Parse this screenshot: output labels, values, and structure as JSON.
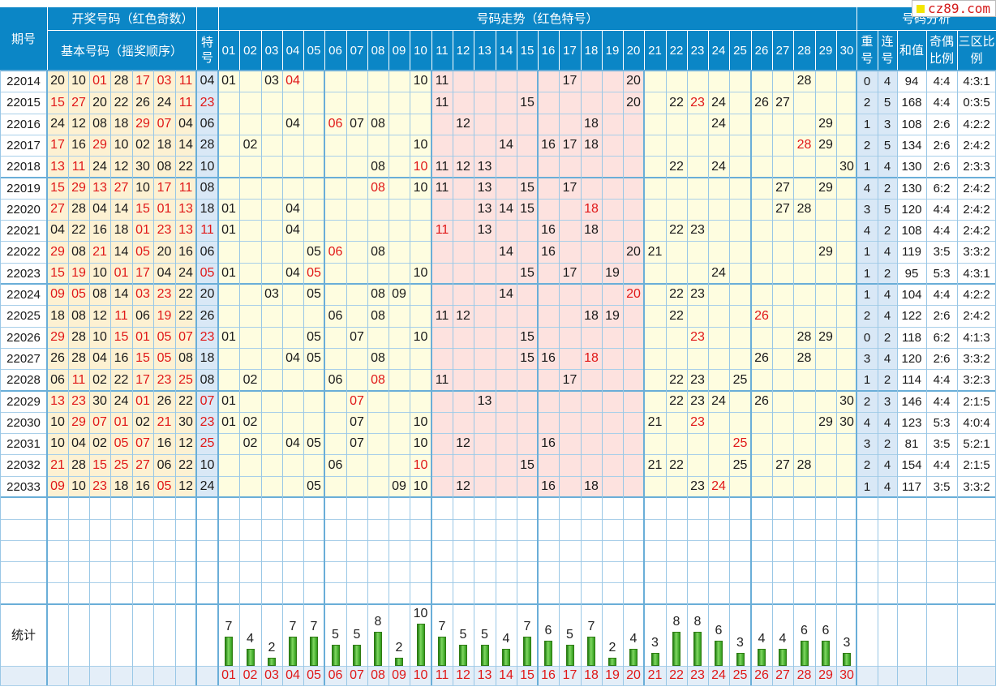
{
  "header": {
    "col_issue": "期号",
    "group_winning": "开奖号码（红色奇数）",
    "group_basic": "基本号码（摇奖顺序）",
    "group_special": "特号",
    "group_trend": "号码走势（红色特号）",
    "group_analysis": "号码分析",
    "analysis_cols": [
      "重号",
      "连号",
      "和值",
      "奇偶比例",
      "三区比例"
    ]
  },
  "stats_label": "统计",
  "watermark": "cz89.com",
  "colors": {
    "header_bg": "#0b86c6",
    "odd_red": "#e01818",
    "winning_bg": "#fdf1d2",
    "trend_yellow": "#fefde0",
    "trend_pink": "#fde2df",
    "analysis_bg": "#d9e8f6",
    "issue_bg": "#e3eef8",
    "bar_green": "#3da522"
  },
  "chart_data": {
    "type": "table",
    "numbers": [
      "01",
      "02",
      "03",
      "04",
      "05",
      "06",
      "07",
      "08",
      "09",
      "10",
      "11",
      "12",
      "13",
      "14",
      "15",
      "16",
      "17",
      "18",
      "19",
      "20",
      "21",
      "22",
      "23",
      "24",
      "25",
      "26",
      "27",
      "28",
      "29",
      "30"
    ],
    "rows": [
      {
        "issue": "22014",
        "basic": [
          "20",
          "10",
          "01",
          "28",
          "17",
          "03",
          "11"
        ],
        "special": "04",
        "repeat": "0",
        "consec": "4",
        "sum": "94",
        "odd_even": "4:4",
        "zones": "4:3:1"
      },
      {
        "issue": "22015",
        "basic": [
          "15",
          "27",
          "20",
          "22",
          "26",
          "24",
          "11"
        ],
        "special": "23",
        "repeat": "2",
        "consec": "5",
        "sum": "168",
        "odd_even": "4:4",
        "zones": "0:3:5"
      },
      {
        "issue": "22016",
        "basic": [
          "24",
          "12",
          "08",
          "18",
          "29",
          "07",
          "04"
        ],
        "special": "06",
        "repeat": "1",
        "consec": "3",
        "sum": "108",
        "odd_even": "2:6",
        "zones": "4:2:2"
      },
      {
        "issue": "22017",
        "basic": [
          "17",
          "16",
          "29",
          "10",
          "02",
          "18",
          "14"
        ],
        "special": "28",
        "repeat": "2",
        "consec": "5",
        "sum": "134",
        "odd_even": "2:6",
        "zones": "2:4:2"
      },
      {
        "issue": "22018",
        "basic": [
          "13",
          "11",
          "24",
          "12",
          "30",
          "08",
          "22"
        ],
        "special": "10",
        "repeat": "1",
        "consec": "4",
        "sum": "130",
        "odd_even": "2:6",
        "zones": "2:3:3"
      },
      {
        "issue": "22019",
        "basic": [
          "15",
          "29",
          "13",
          "27",
          "10",
          "17",
          "11"
        ],
        "special": "08",
        "repeat": "4",
        "consec": "2",
        "sum": "130",
        "odd_even": "6:2",
        "zones": "2:4:2"
      },
      {
        "issue": "22020",
        "basic": [
          "27",
          "28",
          "04",
          "14",
          "15",
          "01",
          "13"
        ],
        "special": "18",
        "repeat": "3",
        "consec": "5",
        "sum": "120",
        "odd_even": "4:4",
        "zones": "2:4:2"
      },
      {
        "issue": "22021",
        "basic": [
          "04",
          "22",
          "16",
          "18",
          "01",
          "23",
          "13"
        ],
        "special": "11",
        "repeat": "4",
        "consec": "2",
        "sum": "108",
        "odd_even": "4:4",
        "zones": "2:4:2"
      },
      {
        "issue": "22022",
        "basic": [
          "29",
          "08",
          "21",
          "14",
          "05",
          "20",
          "16"
        ],
        "special": "06",
        "repeat": "1",
        "consec": "4",
        "sum": "119",
        "odd_even": "3:5",
        "zones": "3:3:2"
      },
      {
        "issue": "22023",
        "basic": [
          "15",
          "19",
          "10",
          "01",
          "17",
          "04",
          "24"
        ],
        "special": "05",
        "repeat": "1",
        "consec": "2",
        "sum": "95",
        "odd_even": "5:3",
        "zones": "4:3:1"
      },
      {
        "issue": "22024",
        "basic": [
          "09",
          "05",
          "08",
          "14",
          "03",
          "23",
          "22"
        ],
        "special": "20",
        "repeat": "1",
        "consec": "4",
        "sum": "104",
        "odd_even": "4:4",
        "zones": "4:2:2"
      },
      {
        "issue": "22025",
        "basic": [
          "18",
          "08",
          "12",
          "11",
          "06",
          "19",
          "22"
        ],
        "special": "26",
        "repeat": "2",
        "consec": "4",
        "sum": "122",
        "odd_even": "2:6",
        "zones": "2:4:2"
      },
      {
        "issue": "22026",
        "basic": [
          "29",
          "28",
          "10",
          "15",
          "01",
          "05",
          "07"
        ],
        "special": "23",
        "repeat": "0",
        "consec": "2",
        "sum": "118",
        "odd_even": "6:2",
        "zones": "4:1:3"
      },
      {
        "issue": "22027",
        "basic": [
          "26",
          "28",
          "04",
          "16",
          "15",
          "05",
          "08"
        ],
        "special": "18",
        "repeat": "3",
        "consec": "4",
        "sum": "120",
        "odd_even": "2:6",
        "zones": "3:3:2"
      },
      {
        "issue": "22028",
        "basic": [
          "06",
          "11",
          "02",
          "22",
          "17",
          "23",
          "25"
        ],
        "special": "08",
        "repeat": "1",
        "consec": "2",
        "sum": "114",
        "odd_even": "4:4",
        "zones": "3:2:3"
      },
      {
        "issue": "22029",
        "basic": [
          "13",
          "23",
          "30",
          "24",
          "01",
          "26",
          "22"
        ],
        "special": "07",
        "repeat": "2",
        "consec": "3",
        "sum": "146",
        "odd_even": "4:4",
        "zones": "2:1:5"
      },
      {
        "issue": "22030",
        "basic": [
          "10",
          "29",
          "07",
          "01",
          "02",
          "21",
          "30"
        ],
        "special": "23",
        "repeat": "4",
        "consec": "4",
        "sum": "123",
        "odd_even": "5:3",
        "zones": "4:0:4"
      },
      {
        "issue": "22031",
        "basic": [
          "10",
          "04",
          "02",
          "05",
          "07",
          "16",
          "12"
        ],
        "special": "25",
        "repeat": "3",
        "consec": "2",
        "sum": "81",
        "odd_even": "3:5",
        "zones": "5:2:1"
      },
      {
        "issue": "22032",
        "basic": [
          "21",
          "28",
          "15",
          "25",
          "27",
          "06",
          "22"
        ],
        "special": "10",
        "repeat": "2",
        "consec": "4",
        "sum": "154",
        "odd_even": "4:4",
        "zones": "2:1:5"
      },
      {
        "issue": "22033",
        "basic": [
          "09",
          "10",
          "23",
          "18",
          "16",
          "05",
          "12"
        ],
        "special": "24",
        "repeat": "1",
        "consec": "4",
        "sum": "117",
        "odd_even": "3:5",
        "zones": "3:3:2"
      }
    ],
    "frequency": {
      "categories": [
        "01",
        "02",
        "03",
        "04",
        "05",
        "06",
        "07",
        "08",
        "09",
        "10",
        "11",
        "12",
        "13",
        "14",
        "15",
        "16",
        "17",
        "18",
        "19",
        "20",
        "21",
        "22",
        "23",
        "24",
        "25",
        "26",
        "27",
        "28",
        "29",
        "30"
      ],
      "values": [
        7,
        4,
        2,
        7,
        7,
        5,
        5,
        8,
        2,
        10,
        7,
        5,
        5,
        4,
        7,
        6,
        5,
        7,
        2,
        4,
        3,
        8,
        8,
        6,
        3,
        4,
        4,
        6,
        6,
        3
      ]
    }
  }
}
